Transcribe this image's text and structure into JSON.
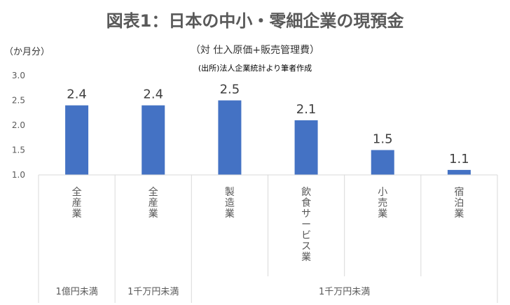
{
  "chart_data": {
    "type": "bar",
    "title": "図表1：日本の中小・零細企業の現預金",
    "subtitle": "（対 仕入原価+販売管理費）",
    "source": "(出所)法人企業統計より筆者作成",
    "ylabel": "（か月分）",
    "xlabel": "",
    "ylim": [
      1.0,
      3.0
    ],
    "yticks": [
      "1.0",
      "1.5",
      "2.0",
      "2.5",
      "3.0"
    ],
    "categories": [
      "全産業",
      "全産業",
      "製造業",
      "飲食サービス業",
      "小売業",
      "宿泊業"
    ],
    "values": [
      2.4,
      2.4,
      2.5,
      2.1,
      1.5,
      1.1
    ],
    "data_labels": [
      "2.4",
      "2.4",
      "2.5",
      "2.1",
      "1.5",
      "1.1"
    ],
    "groups": [
      {
        "label": "1億円未満",
        "span": [
          0,
          0
        ]
      },
      {
        "label": "1千万円未満",
        "span": [
          1,
          1
        ]
      },
      {
        "label": "1千万円未満",
        "span": [
          2,
          5
        ]
      }
    ],
    "bar_color": "#4472C4",
    "grid": false,
    "legend": "none"
  }
}
